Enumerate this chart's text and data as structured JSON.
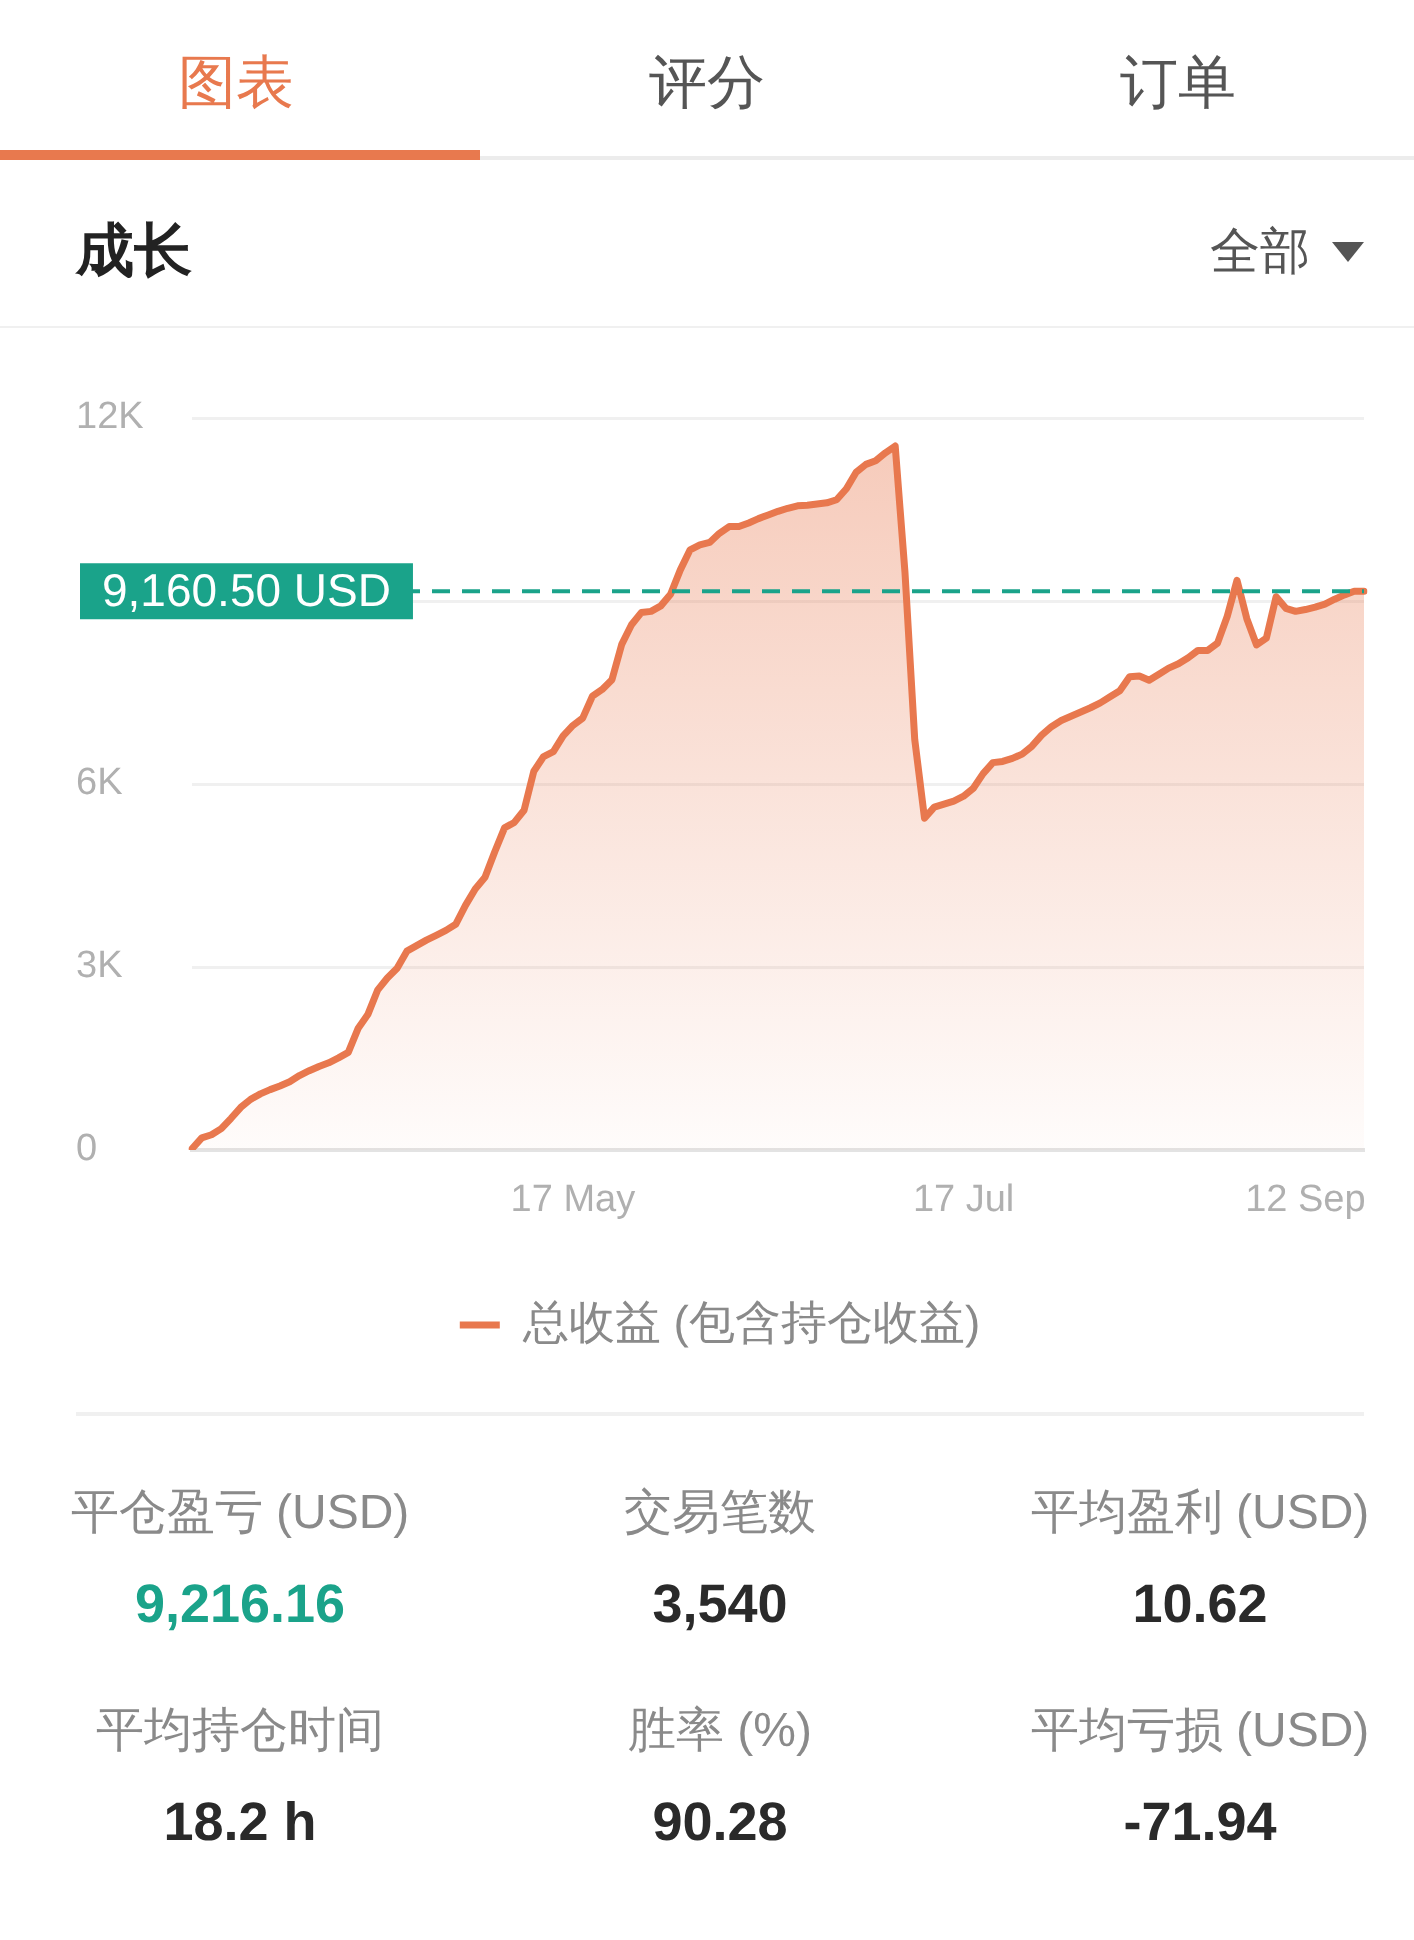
{
  "chart_data": [
    {
      "type": "other",
      "annotations": [
        "图表",
        "评分",
        "订单"
      ]
    },
    {
      "type": "area",
      "title": "成长",
      "annotations": [
        "全部"
      ],
      "categories": [
        null,
        null,
        null,
        null,
        null,
        null,
        null,
        null,
        null,
        null,
        null,
        null,
        null,
        null,
        null,
        null,
        null,
        null,
        null,
        null,
        null,
        null,
        null,
        null,
        null,
        null,
        null,
        null,
        null,
        null,
        null,
        null,
        null,
        null,
        null,
        null,
        null,
        null,
        null,
        "17 May",
        null,
        null,
        null,
        null,
        null,
        null,
        null,
        null,
        null,
        null,
        null,
        null,
        null,
        null,
        null,
        null,
        null,
        null,
        null,
        null,
        null,
        null,
        null,
        null,
        null,
        null,
        null,
        null,
        null,
        null,
        null,
        null,
        null,
        null,
        null,
        null,
        null,
        null,
        null,
        "17 Jul",
        null,
        null,
        null,
        null,
        null,
        null,
        null,
        null,
        null,
        null,
        null,
        null,
        null,
        null,
        null,
        null,
        null,
        null,
        null,
        null,
        null,
        null,
        null,
        null,
        null,
        null,
        null,
        null,
        null,
        null,
        null,
        null,
        null,
        null,
        "12 Sep",
        null,
        null,
        null,
        null,
        null,
        null
      ],
      "series": [
        {
          "name": "总收益 (包含持仓收益)",
          "color": "#e8784e",
          "values": [
            20,
            200,
            250,
            350,
            520,
            700,
            830,
            920,
            990,
            1050,
            1120,
            1220,
            1300,
            1370,
            1430,
            1510,
            1600,
            1990,
            2220,
            2620,
            2820,
            2980,
            3260,
            3350,
            3440,
            3520,
            3600,
            3700,
            4010,
            4280,
            4470,
            4890,
            5280,
            5370,
            5570,
            6210,
            6450,
            6530,
            6790,
            6960,
            7080,
            7440,
            7550,
            7710,
            8290,
            8610,
            8810,
            8830,
            8920,
            9110,
            9510,
            9840,
            9920,
            9960,
            10110,
            10220,
            10220,
            10280,
            10350,
            10410,
            10470,
            10520,
            10560,
            10570,
            10590,
            10610,
            10660,
            10840,
            11110,
            11240,
            11300,
            11430,
            11540,
            9470,
            6730,
            5440,
            5620,
            5670,
            5720,
            5800,
            5930,
            6170,
            6350,
            6370,
            6420,
            6490,
            6620,
            6800,
            6940,
            7040,
            7110,
            7180,
            7250,
            7330,
            7430,
            7530,
            7760,
            7770,
            7700,
            7800,
            7900,
            7970,
            8070,
            8190,
            8190,
            8310,
            8750,
            9340,
            8710,
            8280,
            8390,
            9070,
            8880,
            8830,
            8860,
            8900,
            8950,
            9030,
            9100,
            9160,
            9160
          ]
        }
      ],
      "ylim": [
        0,
        12000
      ],
      "yticks": [
        0,
        {
          "value": 3000,
          "label": "3K"
        },
        {
          "value": 6000,
          "label": "6K"
        },
        {
          "value": 9000,
          "label": null
        },
        {
          "value": 12000,
          "label": "12K"
        }
      ],
      "grid": "y",
      "legend": "bottom",
      "ref_lines": [
        {
          "axis": "y",
          "value": 9160.5,
          "label": "9,160.50 USD",
          "color": "#1aa38a",
          "line_style": "dashed"
        }
      ]
    },
    {
      "type": "other",
      "annotations": [
        "平仓盈亏 (USD)",
        "交易笔数",
        "平均盈利 (USD)",
        "9,216.16",
        "3,540",
        "10.62",
        "平均持仓时间",
        "胜率 (%)",
        "平均亏损 (USD)",
        "18.2 h",
        "90.28",
        "-71.94"
      ]
    }
  ]
}
